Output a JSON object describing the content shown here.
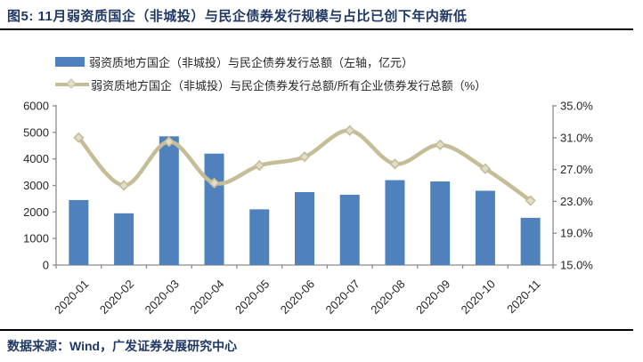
{
  "figure": {
    "title": "图5: 11月弱资质国企（非城投）与民企债券发行规模与占比已创下年内新低",
    "source": "数据来源：Wind，广发证券发展研究中心"
  },
  "legend": {
    "items": [
      {
        "type": "bar",
        "label": "弱资质地方国企（非城投）与民企债券发行总额（左轴，亿元）"
      },
      {
        "type": "line",
        "label": "弱资质地方国企（非城投）与民企债券发行总额/所有企业债券发行总额（%）"
      }
    ]
  },
  "colors": {
    "bar": "#4F81BD",
    "line": "#C4BD97",
    "marker_fill": "#E2DDC8",
    "axis": "#8C8C8C",
    "axis_text": "#262626",
    "title_text": "#1F3864",
    "divider": "#000000"
  },
  "chart_data": {
    "type": "bar",
    "subtype": "combo-bar-smooth-line",
    "categories": [
      "2020-01",
      "2020-02",
      "2020-03",
      "2020-04",
      "2020-05",
      "2020-06",
      "2020-07",
      "2020-08",
      "2020-09",
      "2020-10",
      "2020-11"
    ],
    "series": [
      {
        "name": "弱资质地方国企（非城投）与民企债券发行总额（左轴，亿元）",
        "type": "bar",
        "axis": "left",
        "values": [
          2450,
          1950,
          4850,
          4200,
          2100,
          2750,
          2650,
          3200,
          3150,
          2800,
          1780
        ]
      },
      {
        "name": "弱资质地方国企（非城投）与民企债券发行总额/所有企业债券发行总额（%）",
        "type": "line",
        "axis": "right",
        "values": [
          31.0,
          25.0,
          30.5,
          25.3,
          27.5,
          28.6,
          31.9,
          27.7,
          30.1,
          27.1,
          23.1
        ]
      }
    ],
    "left_axis": {
      "min": 0,
      "max": 6000,
      "step": 1000,
      "tick_labels": [
        "0",
        "1000",
        "2000",
        "3000",
        "4000",
        "5000",
        "6000"
      ]
    },
    "right_axis": {
      "min": 15,
      "max": 35,
      "step": 4,
      "tick_labels": [
        "15.0%",
        "19.0%",
        "23.0%",
        "27.0%",
        "31.0%",
        "35.0%"
      ]
    },
    "grid": false,
    "legend_position": "top-left",
    "x_label_rotation": -45
  }
}
